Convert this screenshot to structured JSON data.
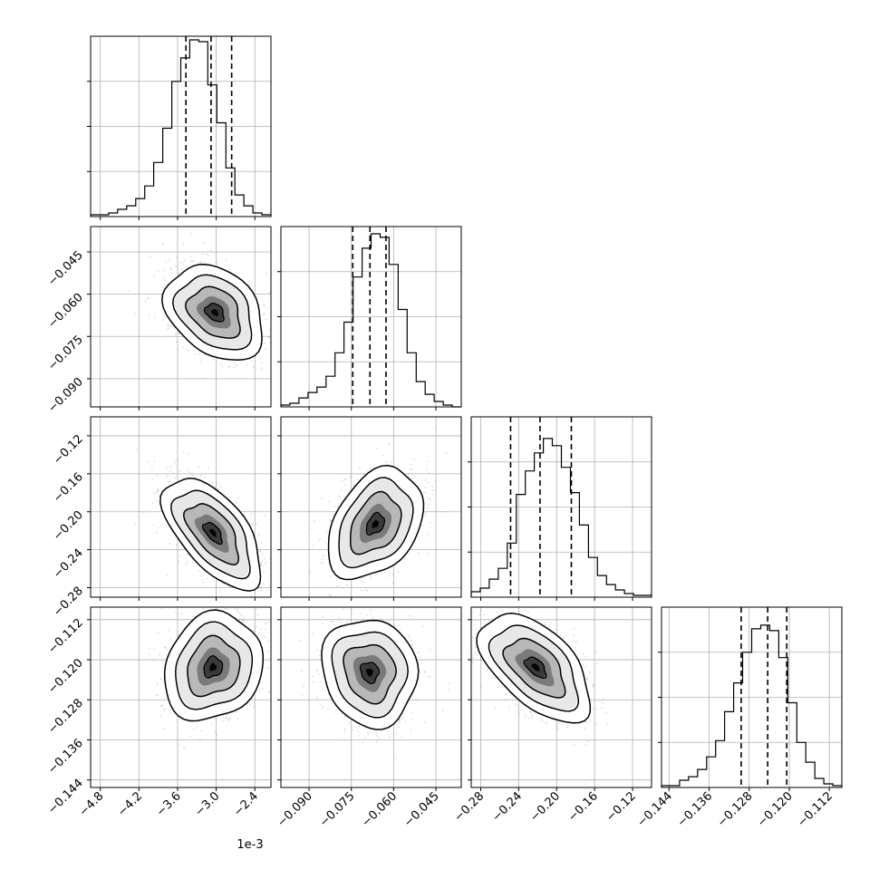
{
  "chart_data": {
    "type": "corner",
    "n_params": 4,
    "offset_text": "1e-3",
    "grid": true,
    "parameters": [
      {
        "index": 0,
        "ticks": [
          -4.8,
          -4.2,
          -3.6,
          -3.0,
          -2.4
        ],
        "tick_labels": [
          "−4.8",
          "−4.2",
          "−3.6",
          "−3.0",
          "−2.4"
        ],
        "range": [
          -4.95,
          -2.15
        ],
        "quantiles": [
          -3.47,
          -3.08,
          -2.76
        ],
        "hist": {
          "edges_start": -4.95,
          "bin_width": 0.14,
          "counts": [
            1,
            1,
            2,
            4,
            6,
            10,
            17,
            30,
            49,
            75,
            88,
            98,
            97,
            73,
            52,
            27,
            12,
            6,
            2,
            1
          ]
        },
        "ylim_max": 100
      },
      {
        "index": 1,
        "ticks": [
          -0.09,
          -0.075,
          -0.06,
          -0.045
        ],
        "tick_labels": [
          "−0.090",
          "−0.075",
          "−0.060",
          "−0.045"
        ],
        "range": [
          -0.1,
          -0.036
        ],
        "quantiles": [
          -0.0745,
          -0.0684,
          -0.0627
        ],
        "hist": {
          "edges_start": -0.1,
          "bin_width": 0.0032,
          "counts": [
            1,
            2,
            5,
            8,
            11,
            17,
            30,
            47,
            72,
            88,
            96,
            94,
            79,
            54,
            30,
            14,
            7,
            3,
            1,
            0
          ]
        },
        "ylim_max": 100
      },
      {
        "index": 2,
        "ticks": [
          -0.28,
          -0.24,
          -0.2,
          -0.16,
          -0.12
        ],
        "tick_labels": [
          "−0.28",
          "−0.24",
          "−0.20",
          "−0.16",
          "−0.12"
        ],
        "range": [
          -0.29,
          -0.1
        ],
        "quantiles": [
          -0.2485,
          -0.2175,
          -0.1845
        ],
        "hist": {
          "edges_start": -0.29,
          "bin_width": 0.0095,
          "counts": [
            3,
            5,
            10,
            16,
            30,
            57,
            70,
            80,
            88,
            84,
            72,
            58,
            40,
            22,
            12,
            7,
            4,
            2,
            1,
            1
          ]
        },
        "ylim_max": 100
      },
      {
        "index": 3,
        "ticks": [
          -0.144,
          -0.136,
          -0.128,
          -0.12,
          -0.112
        ],
        "tick_labels": [
          "−0.144",
          "−0.136",
          "−0.128",
          "−0.120",
          "−0.112"
        ],
        "range": [
          -0.1455,
          -0.1095
        ],
        "quantiles": [
          -0.1296,
          -0.1243,
          -0.1205
        ],
        "hist": {
          "edges_start": -0.1455,
          "bin_width": 0.0018,
          "counts": [
            1,
            1,
            4,
            6,
            10,
            17,
            26,
            42,
            58,
            75,
            88,
            90,
            87,
            72,
            47,
            25,
            14,
            5,
            2,
            1
          ]
        },
        "ylim_max": 100
      }
    ],
    "pairs": [
      {
        "row": 1,
        "col": 0,
        "mode": [
          -3.02,
          -0.0665
        ],
        "spread": [
          0.34,
          0.0075
        ],
        "corr": -0.3
      },
      {
        "row": 2,
        "col": 0,
        "mode": [
          -3.05,
          -0.222
        ],
        "spread": [
          0.34,
          0.026
        ],
        "corr": -0.6
      },
      {
        "row": 2,
        "col": 1,
        "mode": [
          -0.0665,
          -0.213
        ],
        "spread": [
          0.0075,
          0.026
        ],
        "corr": 0.35
      },
      {
        "row": 3,
        "col": 0,
        "mode": [
          -3.05,
          -0.1215
        ],
        "spread": [
          0.34,
          0.0048
        ],
        "corr": 0.15
      },
      {
        "row": 3,
        "col": 1,
        "mode": [
          -0.0685,
          -0.1225
        ],
        "spread": [
          0.0075,
          0.0048
        ],
        "corr": -0.1
      },
      {
        "row": 3,
        "col": 2,
        "mode": [
          -0.222,
          -0.1215
        ],
        "spread": [
          0.026,
          0.0048
        ],
        "corr": -0.55
      }
    ]
  }
}
